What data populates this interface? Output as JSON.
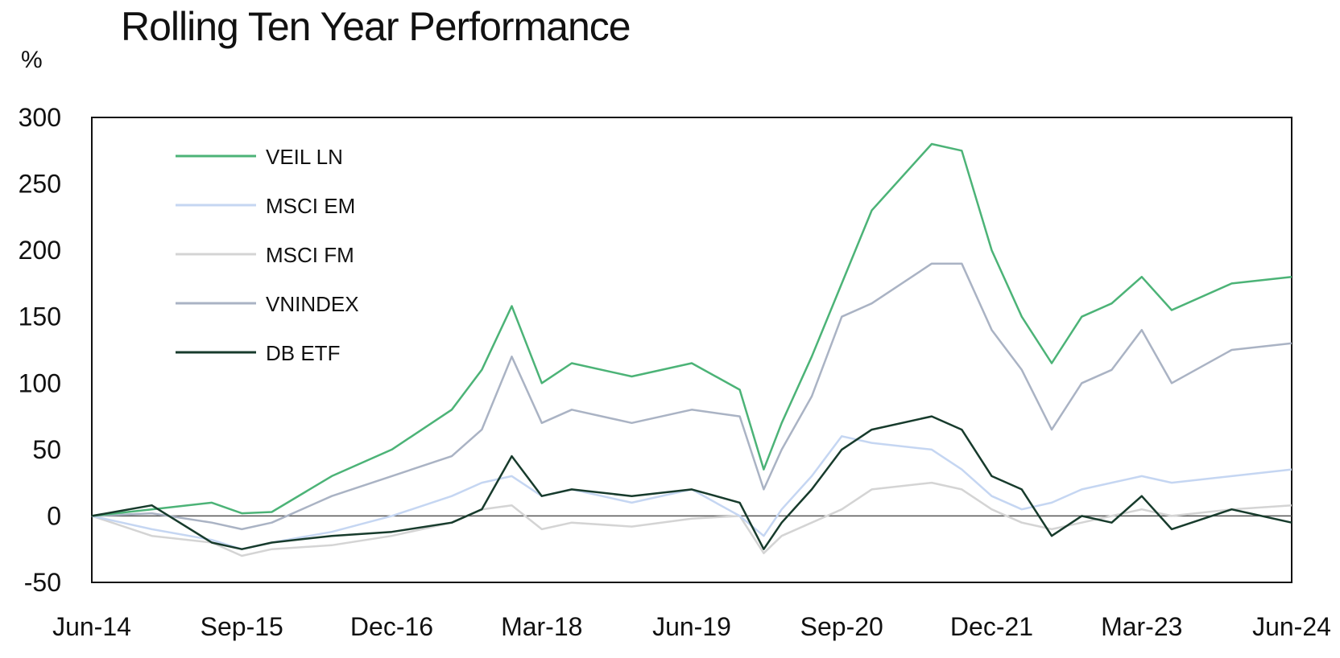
{
  "chart_data": {
    "type": "line",
    "title": "Rolling Ten Year Performance",
    "ylabel": "%",
    "xlabel": "",
    "ylim": [
      -50,
      300
    ],
    "yticks": [
      300,
      250,
      200,
      150,
      100,
      50,
      0,
      -50
    ],
    "xticks": [
      "Jun-14",
      "Sep-15",
      "Dec-16",
      "Mar-18",
      "Jun-19",
      "Sep-20",
      "Dec-21",
      "Mar-23",
      "Jun-24"
    ],
    "legend_position": "top-left",
    "x": [
      0,
      0.5,
      1,
      1.25,
      1.5,
      2,
      2.5,
      3,
      3.25,
      3.5,
      3.75,
      4,
      4.5,
      5,
      5.4,
      5.6,
      5.75,
      6,
      6.25,
      6.5,
      7,
      7.25,
      7.5,
      7.75,
      8,
      8.25,
      8.5,
      8.75,
      9,
      9.5,
      10
    ],
    "series": [
      {
        "name": "VEIL LN",
        "color": "#4cb377",
        "values": [
          0,
          5,
          10,
          2,
          3,
          30,
          50,
          80,
          110,
          158,
          100,
          115,
          105,
          115,
          95,
          35,
          70,
          120,
          175,
          230,
          280,
          275,
          200,
          150,
          115,
          150,
          160,
          180,
          155,
          175,
          180
        ]
      },
      {
        "name": "MSCI EM",
        "color": "#c5d6f2",
        "values": [
          0,
          -10,
          -18,
          -25,
          -20,
          -12,
          0,
          15,
          25,
          30,
          15,
          20,
          10,
          20,
          0,
          -15,
          5,
          30,
          60,
          55,
          50,
          35,
          15,
          5,
          10,
          20,
          25,
          30,
          25,
          30,
          35
        ]
      },
      {
        "name": "MSCI FM",
        "color": "#d4d4d4",
        "values": [
          0,
          -15,
          -20,
          -30,
          -25,
          -22,
          -15,
          -5,
          5,
          8,
          -10,
          -5,
          -8,
          -2,
          0,
          -28,
          -15,
          -5,
          5,
          20,
          25,
          20,
          5,
          -5,
          -10,
          -5,
          0,
          5,
          0,
          5,
          8
        ]
      },
      {
        "name": "VNINDEX",
        "color": "#aab3c4",
        "values": [
          0,
          2,
          -5,
          -10,
          -5,
          15,
          30,
          45,
          65,
          120,
          70,
          80,
          70,
          80,
          75,
          20,
          50,
          90,
          150,
          160,
          190,
          190,
          140,
          110,
          65,
          100,
          110,
          140,
          100,
          125,
          130
        ]
      },
      {
        "name": "DB ETF",
        "color": "#173b2c",
        "values": [
          0,
          8,
          -20,
          -25,
          -20,
          -15,
          -12,
          -5,
          5,
          45,
          15,
          20,
          15,
          20,
          10,
          -25,
          -5,
          20,
          50,
          65,
          75,
          65,
          30,
          20,
          -15,
          0,
          -5,
          15,
          -10,
          5,
          -5
        ]
      }
    ]
  }
}
